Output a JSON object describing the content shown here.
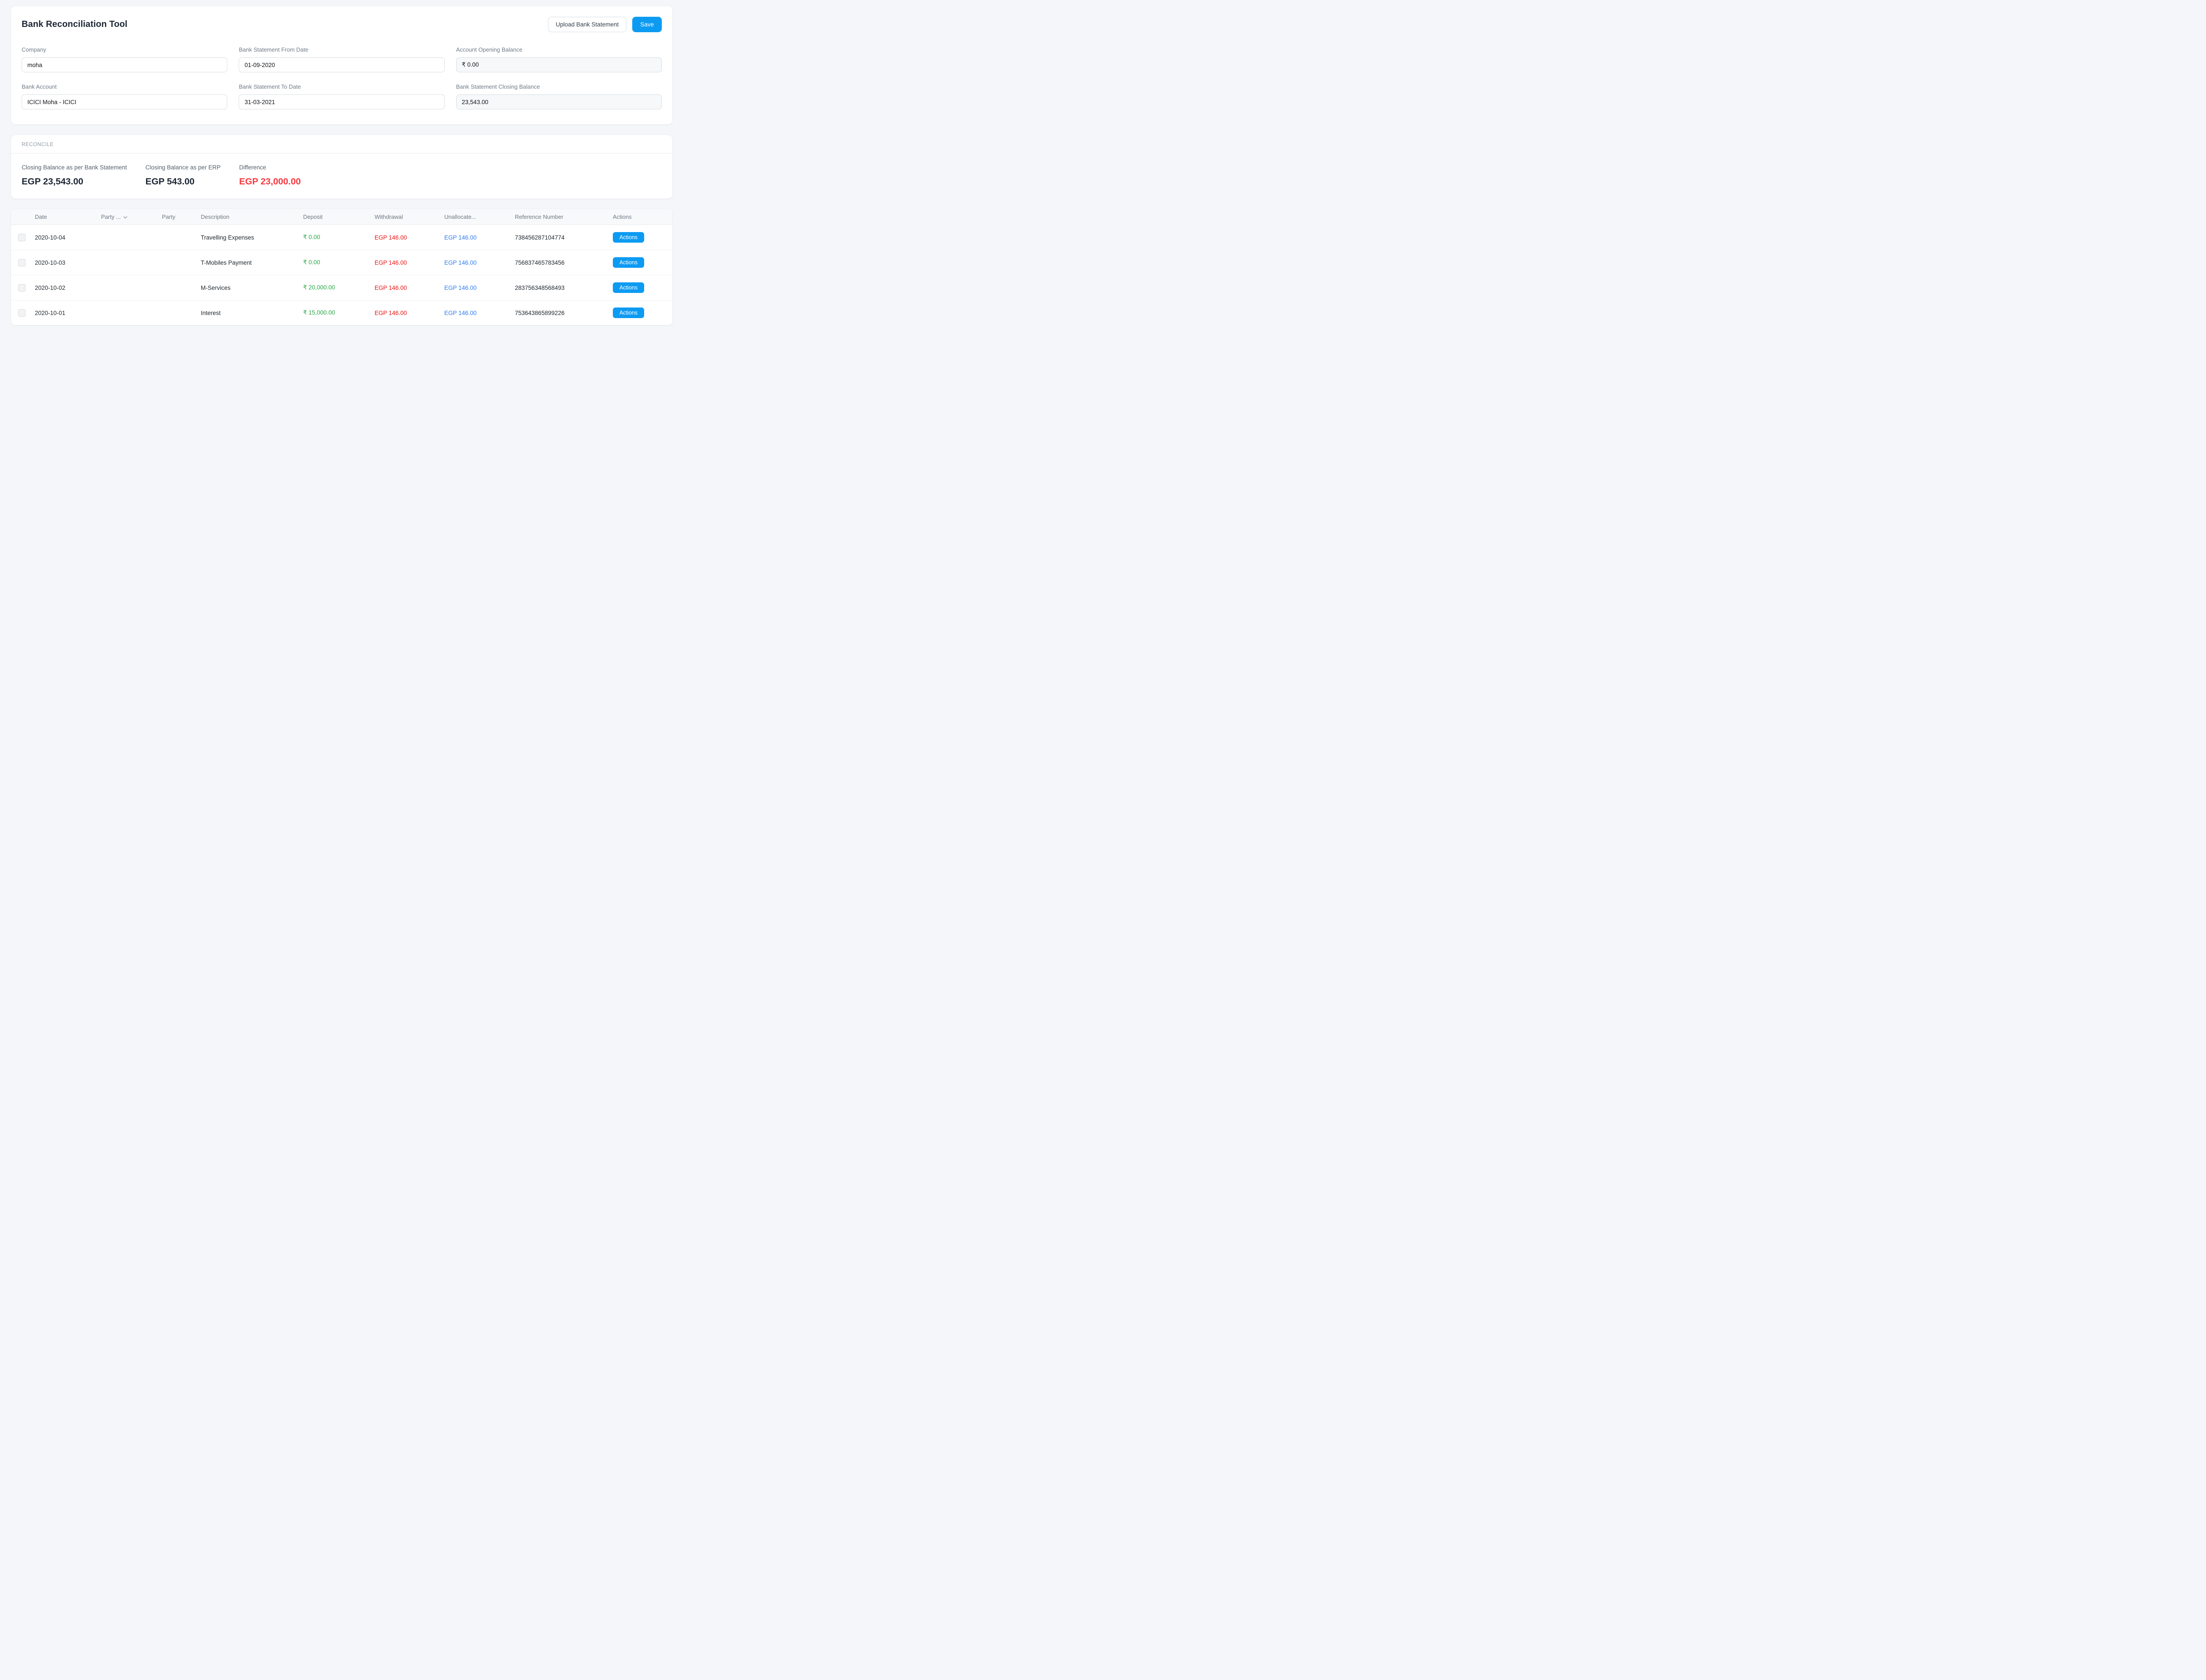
{
  "colors": {
    "accent-blue": "#0d9bf2",
    "green": "#28a745",
    "red": "#ec1111",
    "difference-red": "#f8383f",
    "link-blue": "#2e7cf0"
  },
  "header": {
    "title": "Bank Reconciliation Tool",
    "upload_label": "Upload Bank Statement",
    "save_label": "Save"
  },
  "form": {
    "fields": [
      {
        "label": "Company",
        "value": "moha",
        "readonly": false
      },
      {
        "label": "Bank Statement From Date",
        "value": "01-09-2020",
        "readonly": false
      },
      {
        "label": "Account Opening Balance",
        "value": "₹ 0.00",
        "readonly": true
      },
      {
        "label": "Bank Account",
        "value": "ICICI Moha - ICICI",
        "readonly": false
      },
      {
        "label": "Bank Statement To Date",
        "value": "31-03-2021",
        "readonly": false
      },
      {
        "label": "Bank Statement Closing Balance",
        "value": "23,543.00",
        "readonly": true
      }
    ]
  },
  "reconcile": {
    "section_label": "RECONCILE",
    "items": [
      {
        "label": "Closing Balance as per Bank Statement",
        "value": "EGP 23,543.00"
      },
      {
        "label": "Closing Balance as per ERP",
        "value": "EGP 543.00"
      },
      {
        "label": "Difference",
        "value": "EGP 23,000.00"
      }
    ]
  },
  "table": {
    "columns": [
      {
        "key": "select",
        "label": "",
        "dropdown": false
      },
      {
        "key": "date",
        "label": "Date",
        "dropdown": false
      },
      {
        "key": "party-type",
        "label": "Party ...",
        "dropdown": true
      },
      {
        "key": "party",
        "label": "Party",
        "dropdown": false
      },
      {
        "key": "description",
        "label": "Description",
        "dropdown": false
      },
      {
        "key": "deposit",
        "label": "Deposit",
        "dropdown": false
      },
      {
        "key": "withdrawal",
        "label": "Withdrawal",
        "dropdown": false
      },
      {
        "key": "unallocated",
        "label": "Unallocate...",
        "dropdown": false
      },
      {
        "key": "reference",
        "label": "Reference Number",
        "dropdown": false
      },
      {
        "key": "actions",
        "label": "Actions",
        "dropdown": false
      }
    ],
    "rows": [
      {
        "date": "2020-10-04",
        "party_type": "",
        "party": "",
        "description": "Travelling Expenses",
        "deposit": "₹ 0.00",
        "withdrawal": "EGP 146.00",
        "unallocated": "EGP 146.00",
        "reference": "738456287104774",
        "action": "Actions"
      },
      {
        "date": "2020-10-03",
        "party_type": "",
        "party": "",
        "description": "T-Mobiles Payment",
        "deposit": "₹ 0.00",
        "withdrawal": "EGP 146.00",
        "unallocated": "EGP 146.00",
        "reference": "756837465783456",
        "action": "Actions"
      },
      {
        "date": "2020-10-02",
        "party_type": "",
        "party": "",
        "description": "M-Services",
        "deposit": "₹ 20,000.00",
        "withdrawal": "EGP 146.00",
        "unallocated": "EGP 146.00",
        "reference": "283756348568493",
        "action": "Actions"
      },
      {
        "date": "2020-10-01",
        "party_type": "",
        "party": "",
        "description": "Interest",
        "deposit": "₹ 15,000.00",
        "withdrawal": "EGP 146.00",
        "unallocated": "EGP 146.00",
        "reference": "753643865899226",
        "action": "Actions"
      }
    ]
  }
}
